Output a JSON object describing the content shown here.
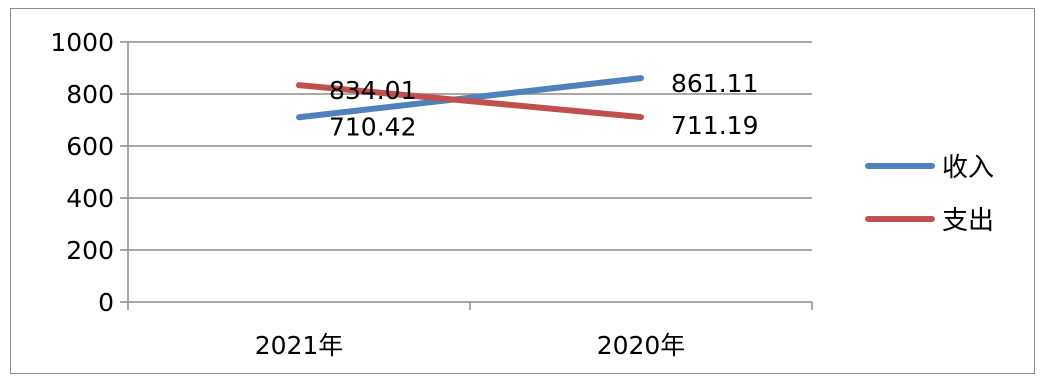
{
  "chart_data": {
    "type": "line",
    "title": "",
    "xlabel": "",
    "ylabel": "",
    "categories": [
      "2021年",
      "2020年"
    ],
    "series": [
      {
        "name": "收入",
        "values": [
          710.42,
          861.11
        ],
        "color": "#4f81bd"
      },
      {
        "name": "支出",
        "values": [
          834.01,
          711.19
        ],
        "color": "#c0504d"
      }
    ],
    "data_labels": [
      [
        "710.42",
        "861.11"
      ],
      [
        "834.01",
        "711.19"
      ]
    ],
    "ylim": [
      0,
      1000
    ],
    "yticks": [
      0,
      200,
      400,
      600,
      800,
      1000
    ],
    "ytick_labels": [
      "0",
      "200",
      "400",
      "600",
      "800",
      "1000"
    ],
    "grid": true,
    "legend_position": "right"
  }
}
